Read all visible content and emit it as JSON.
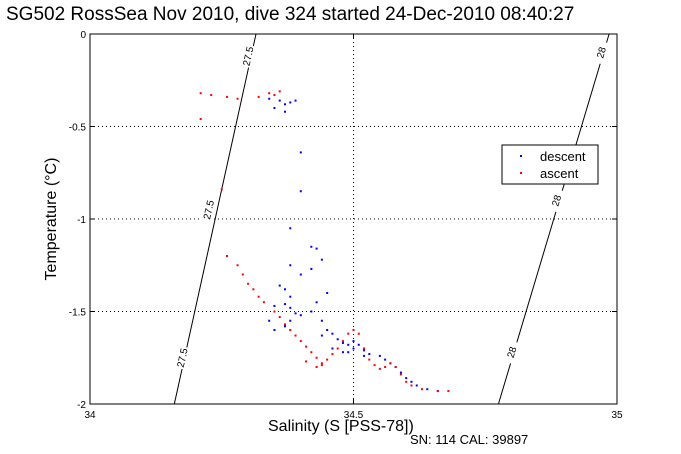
{
  "chart_data": {
    "type": "scatter",
    "title": "SG502 RossSea Nov 2010, dive 324 started 24-Dec-2010 08:40:27",
    "xlabel": "Salinity (S [PSS-78])",
    "ylabel": "Temperature (°C)",
    "xlim": [
      34,
      35
    ],
    "ylim": [
      -2,
      0
    ],
    "x_ticks": [
      {
        "value": 34,
        "label": "34"
      },
      {
        "value": 34.5,
        "label": "34.5"
      },
      {
        "value": 35,
        "label": "35"
      }
    ],
    "y_ticks": [
      {
        "value": 0,
        "label": "0"
      },
      {
        "value": -0.5,
        "label": "-0.5"
      },
      {
        "value": -1,
        "label": "-1"
      },
      {
        "value": -1.5,
        "label": "-1.5"
      },
      {
        "value": -2,
        "label": "-2"
      }
    ],
    "grid": true,
    "legend_position": "right",
    "series": [
      {
        "name": "descent",
        "color": "#0000ff",
        "points": [
          [
            34.34,
            -0.35
          ],
          [
            34.36,
            -0.36
          ],
          [
            34.37,
            -0.38
          ],
          [
            34.38,
            -0.37
          ],
          [
            34.35,
            -0.4
          ],
          [
            34.39,
            -0.36
          ],
          [
            34.37,
            -0.42
          ],
          [
            34.4,
            -0.64
          ],
          [
            34.4,
            -0.85
          ],
          [
            34.38,
            -1.05
          ],
          [
            34.42,
            -1.15
          ],
          [
            34.43,
            -1.16
          ],
          [
            34.44,
            -1.22
          ],
          [
            34.42,
            -1.27
          ],
          [
            34.4,
            -1.3
          ],
          [
            34.38,
            -1.25
          ],
          [
            34.36,
            -1.36
          ],
          [
            34.37,
            -1.38
          ],
          [
            34.38,
            -1.42
          ],
          [
            34.37,
            -1.46
          ],
          [
            34.38,
            -1.48
          ],
          [
            34.39,
            -1.51
          ],
          [
            34.35,
            -1.47
          ],
          [
            34.34,
            -1.55
          ],
          [
            34.35,
            -1.6
          ],
          [
            34.37,
            -1.58
          ],
          [
            34.38,
            -1.55
          ],
          [
            34.4,
            -1.52
          ],
          [
            34.42,
            -1.5
          ],
          [
            34.44,
            -1.55
          ],
          [
            34.45,
            -1.6
          ],
          [
            34.44,
            -1.63
          ],
          [
            34.46,
            -1.62
          ],
          [
            34.47,
            -1.65
          ],
          [
            34.48,
            -1.67
          ],
          [
            34.49,
            -1.68
          ],
          [
            34.5,
            -1.66
          ],
          [
            34.46,
            -1.7
          ],
          [
            34.48,
            -1.72
          ],
          [
            34.5,
            -1.7
          ],
          [
            34.51,
            -1.68
          ],
          [
            34.52,
            -1.71
          ],
          [
            34.53,
            -1.73
          ],
          [
            34.55,
            -1.74
          ],
          [
            34.56,
            -1.76
          ],
          [
            34.57,
            -1.78
          ],
          [
            34.58,
            -1.8
          ],
          [
            34.59,
            -1.83
          ],
          [
            34.6,
            -1.86
          ],
          [
            34.61,
            -1.88
          ],
          [
            34.62,
            -1.9
          ],
          [
            34.64,
            -1.92
          ],
          [
            34.66,
            -1.93
          ],
          [
            34.52,
            -1.74
          ],
          [
            34.49,
            -1.72
          ],
          [
            34.43,
            -1.45
          ],
          [
            34.45,
            -1.4
          ]
        ]
      },
      {
        "name": "ascent",
        "color": "#ff0000",
        "points": [
          [
            34.21,
            -0.32
          ],
          [
            34.23,
            -0.33
          ],
          [
            34.26,
            -0.34
          ],
          [
            34.28,
            -0.35
          ],
          [
            34.32,
            -0.34
          ],
          [
            34.34,
            -0.32
          ],
          [
            34.35,
            -0.33
          ],
          [
            34.36,
            -0.31
          ],
          [
            34.21,
            -0.46
          ],
          [
            34.25,
            -0.84
          ],
          [
            34.26,
            -1.2
          ],
          [
            34.28,
            -1.25
          ],
          [
            34.29,
            -1.3
          ],
          [
            34.3,
            -1.35
          ],
          [
            34.31,
            -1.38
          ],
          [
            34.32,
            -1.42
          ],
          [
            34.33,
            -1.45
          ],
          [
            34.35,
            -1.5
          ],
          [
            34.36,
            -1.53
          ],
          [
            34.37,
            -1.57
          ],
          [
            34.38,
            -1.6
          ],
          [
            34.39,
            -1.63
          ],
          [
            34.4,
            -1.66
          ],
          [
            34.41,
            -1.69
          ],
          [
            34.42,
            -1.72
          ],
          [
            34.43,
            -1.75
          ],
          [
            34.44,
            -1.78
          ],
          [
            34.45,
            -1.76
          ],
          [
            34.46,
            -1.73
          ],
          [
            34.47,
            -1.7
          ],
          [
            34.48,
            -1.66
          ],
          [
            34.49,
            -1.62
          ],
          [
            34.5,
            -1.6
          ],
          [
            34.51,
            -1.62
          ],
          [
            34.52,
            -1.7
          ],
          [
            34.53,
            -1.76
          ],
          [
            34.54,
            -1.79
          ],
          [
            34.55,
            -1.81
          ],
          [
            34.56,
            -1.8
          ],
          [
            34.57,
            -1.78
          ],
          [
            34.58,
            -1.8
          ],
          [
            34.59,
            -1.84
          ],
          [
            34.6,
            -1.88
          ],
          [
            34.61,
            -1.9
          ],
          [
            34.63,
            -1.92
          ],
          [
            34.66,
            -1.93
          ],
          [
            34.68,
            -1.93
          ],
          [
            34.41,
            -1.77
          ],
          [
            34.43,
            -1.8
          ],
          [
            34.44,
            -1.79
          ]
        ]
      }
    ],
    "contours": [
      {
        "label": "27.5",
        "points": [
          [
            34.315,
            0
          ],
          [
            34.16,
            -2
          ]
        ],
        "label_positions": [
          [
            34.3,
            -0.12
          ],
          [
            34.225,
            -0.95
          ],
          [
            34.175,
            -1.75
          ]
        ]
      },
      {
        "label": "28",
        "points": [
          [
            34.985,
            0
          ],
          [
            34.775,
            -2
          ]
        ],
        "label_positions": [
          [
            34.97,
            -0.1
          ],
          [
            34.885,
            -0.9
          ],
          [
            34.8,
            -1.72
          ]
        ]
      }
    ]
  },
  "footnote": "SN: 114  CAL: 39897"
}
